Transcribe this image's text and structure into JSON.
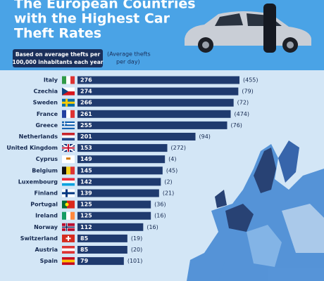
{
  "chart_data": {
    "type": "bar",
    "title_lines": [
      "The European Countries",
      "with the Highest Car",
      "Theft Rates"
    ],
    "subtitle_lines": [
      "Based on average thefts per",
      "100,000 inhabitants each year"
    ],
    "secondary_label_lines": [
      "(Average thefts",
      "per day)"
    ],
    "categories": [
      "Italy",
      "Czechia",
      "Sweden",
      "France",
      "Greece",
      "Netherlands",
      "United Kingdom",
      "Cyprus",
      "Belgium",
      "Luxembourg",
      "Finland",
      "Portugal",
      "Ireland",
      "Norway",
      "Switzerland",
      "Austria",
      "Spain"
    ],
    "values": [
      276,
      274,
      266,
      261,
      255,
      201,
      153,
      149,
      145,
      142,
      139,
      125,
      125,
      112,
      85,
      85,
      79
    ],
    "color": "#1f3a6e",
    "per_day": {
      "values": [
        455,
        79,
        72,
        474,
        76,
        94,
        272,
        4,
        45,
        2,
        21,
        36,
        16,
        16,
        19,
        20,
        101
      ],
      "value_labels": [
        "(455)",
        "(79)",
        "(72)",
        "(474)",
        "(76)",
        "(94)",
        "(272)",
        "(4)",
        "(45)",
        "(2)",
        "(21)",
        "(36)",
        "(16)",
        "(16)",
        "(19)",
        "(20)",
        "(101)"
      ]
    }
  }
}
